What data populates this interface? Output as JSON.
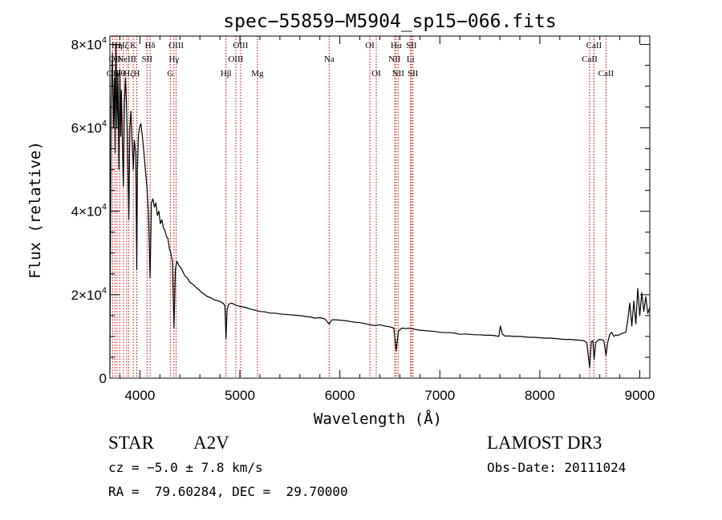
{
  "chart_data": {
    "type": "line",
    "title": "spec−55859−M5904_sp15−066.fits",
    "xlabel": "Wavelength (Å)",
    "ylabel": "Flux (relative)",
    "xlim": [
      3700,
      9100
    ],
    "ylim": [
      0,
      82000
    ],
    "x_ticks": [
      4000,
      5000,
      6000,
      7000,
      8000,
      9000
    ],
    "y_ticks": [
      {
        "value": 0,
        "label": "0",
        "exp": ""
      },
      {
        "value": 20000,
        "label": "2×10",
        "exp": "4"
      },
      {
        "value": 40000,
        "label": "4×10",
        "exp": "4"
      },
      {
        "value": 60000,
        "label": "6×10",
        "exp": "4"
      },
      {
        "value": 80000,
        "label": "8×10",
        "exp": "4"
      }
    ],
    "lines": [
      {
        "wave": 3727,
        "label": "OII",
        "row": 2
      },
      {
        "wave": 3750,
        "label": "OII",
        "row": 1
      },
      {
        "wave": 3771,
        "label": "Hη",
        "row": 0
      },
      {
        "wave": 3798,
        "label": "Hθ",
        "row": 2
      },
      {
        "wave": 3835,
        "label": "Hζ",
        "row": 0
      },
      {
        "wave": 3869,
        "label": "NeIII",
        "row": 1
      },
      {
        "wave": 3889,
        "label": "Hζ",
        "row": 2
      },
      {
        "wave": 3934,
        "label": "K",
        "row": 0
      },
      {
        "wave": 3969,
        "label": "H",
        "row": 2
      },
      {
        "wave": 4072,
        "label": "SII",
        "row": 1
      },
      {
        "wave": 4102,
        "label": "Hδ",
        "row": 0
      },
      {
        "wave": 4305,
        "label": "G",
        "row": 2
      },
      {
        "wave": 4341,
        "label": "Hγ",
        "row": 1
      },
      {
        "wave": 4363,
        "label": "OIII",
        "row": 0
      },
      {
        "wave": 4861,
        "label": "Hβ",
        "row": 2
      },
      {
        "wave": 4959,
        "label": "OIII",
        "row": 1
      },
      {
        "wave": 5007,
        "label": "OIII",
        "row": 0
      },
      {
        "wave": 5175,
        "label": "Mg",
        "row": 2
      },
      {
        "wave": 5893,
        "label": "Na",
        "row": 1
      },
      {
        "wave": 6300,
        "label": "OI",
        "row": 0
      },
      {
        "wave": 6364,
        "label": "OI",
        "row": 2
      },
      {
        "wave": 6548,
        "label": "NII",
        "row": 1
      },
      {
        "wave": 6563,
        "label": "Hα",
        "row": 0
      },
      {
        "wave": 6583,
        "label": "NII",
        "row": 2
      },
      {
        "wave": 6707,
        "label": "Li",
        "row": 1
      },
      {
        "wave": 6716,
        "label": "SII",
        "row": 0
      },
      {
        "wave": 6731,
        "label": "SII",
        "row": 2
      },
      {
        "wave": 8498,
        "label": "CaII",
        "row": 1
      },
      {
        "wave": 8542,
        "label": "CaII",
        "row": 0
      },
      {
        "wave": 8662,
        "label": "CaII",
        "row": 2
      }
    ],
    "series": [
      {
        "name": "flux",
        "points": [
          [
            3700,
            1000
          ],
          [
            3712,
            66000
          ],
          [
            3725,
            78000
          ],
          [
            3735,
            60000
          ],
          [
            3745,
            72000
          ],
          [
            3752,
            54000
          ],
          [
            3760,
            80000
          ],
          [
            3770,
            60000
          ],
          [
            3780,
            73000
          ],
          [
            3790,
            50000
          ],
          [
            3800,
            74000
          ],
          [
            3808,
            58000
          ],
          [
            3815,
            69000
          ],
          [
            3825,
            56000
          ],
          [
            3835,
            46000
          ],
          [
            3845,
            66000
          ],
          [
            3855,
            72000
          ],
          [
            3865,
            66000
          ],
          [
            3875,
            58000
          ],
          [
            3889,
            38000
          ],
          [
            3900,
            60000
          ],
          [
            3910,
            64000
          ],
          [
            3920,
            58000
          ],
          [
            3934,
            50000
          ],
          [
            3945,
            57000
          ],
          [
            3958,
            54000
          ],
          [
            3969,
            26000
          ],
          [
            3975,
            50000
          ],
          [
            3985,
            58000
          ],
          [
            3995,
            60000
          ],
          [
            4010,
            61000
          ],
          [
            4025,
            58000
          ],
          [
            4040,
            54000
          ],
          [
            4055,
            50000
          ],
          [
            4070,
            46000
          ],
          [
            4085,
            40000
          ],
          [
            4102,
            24000
          ],
          [
            4115,
            42000
          ],
          [
            4130,
            43000
          ],
          [
            4145,
            41000
          ],
          [
            4160,
            42000
          ],
          [
            4175,
            39000
          ],
          [
            4190,
            40000
          ],
          [
            4205,
            37000
          ],
          [
            4220,
            38000
          ],
          [
            4235,
            36000
          ],
          [
            4250,
            35500
          ],
          [
            4265,
            34000
          ],
          [
            4280,
            33500
          ],
          [
            4295,
            31000
          ],
          [
            4310,
            30000
          ],
          [
            4325,
            28000
          ],
          [
            4341,
            12000
          ],
          [
            4355,
            26000
          ],
          [
            4370,
            28000
          ],
          [
            4390,
            27000
          ],
          [
            4410,
            26500
          ],
          [
            4430,
            25500
          ],
          [
            4450,
            24500
          ],
          [
            4475,
            24000
          ],
          [
            4500,
            23000
          ],
          [
            4530,
            22500
          ],
          [
            4560,
            21800
          ],
          [
            4590,
            21200
          ],
          [
            4620,
            20500
          ],
          [
            4650,
            20000
          ],
          [
            4680,
            19500
          ],
          [
            4710,
            19300
          ],
          [
            4740,
            18800
          ],
          [
            4770,
            18600
          ],
          [
            4800,
            18400
          ],
          [
            4830,
            18000
          ],
          [
            4850,
            17500
          ],
          [
            4861,
            9500
          ],
          [
            4872,
            16500
          ],
          [
            4890,
            17800
          ],
          [
            4920,
            18000
          ],
          [
            4950,
            17600
          ],
          [
            5000,
            17200
          ],
          [
            5050,
            17000
          ],
          [
            5100,
            16600
          ],
          [
            5150,
            16300
          ],
          [
            5200,
            16000
          ],
          [
            5250,
            15900
          ],
          [
            5300,
            15600
          ],
          [
            5350,
            15600
          ],
          [
            5400,
            15400
          ],
          [
            5450,
            15300
          ],
          [
            5500,
            15200
          ],
          [
            5550,
            15100
          ],
          [
            5600,
            15000
          ],
          [
            5650,
            14800
          ],
          [
            5700,
            14700
          ],
          [
            5750,
            14400
          ],
          [
            5800,
            14500
          ],
          [
            5850,
            14200
          ],
          [
            5893,
            13000
          ],
          [
            5920,
            14000
          ],
          [
            5960,
            14000
          ],
          [
            6000,
            13900
          ],
          [
            6050,
            13800
          ],
          [
            6100,
            13600
          ],
          [
            6150,
            13400
          ],
          [
            6200,
            13300
          ],
          [
            6250,
            13100
          ],
          [
            6300,
            12800
          ],
          [
            6350,
            12600
          ],
          [
            6400,
            12800
          ],
          [
            6450,
            12500
          ],
          [
            6500,
            12300
          ],
          [
            6540,
            12000
          ],
          [
            6563,
            6500
          ],
          [
            6585,
            11300
          ],
          [
            6620,
            12000
          ],
          [
            6660,
            11900
          ],
          [
            6700,
            12000
          ],
          [
            6750,
            11700
          ],
          [
            6800,
            11500
          ],
          [
            6850,
            11400
          ],
          [
            6900,
            11300
          ],
          [
            6950,
            11200
          ],
          [
            7000,
            11000
          ],
          [
            7050,
            10900
          ],
          [
            7100,
            10900
          ],
          [
            7150,
            10800
          ],
          [
            7200,
            10500
          ],
          [
            7250,
            10600
          ],
          [
            7300,
            10500
          ],
          [
            7350,
            10400
          ],
          [
            7400,
            10400
          ],
          [
            7450,
            10300
          ],
          [
            7500,
            10300
          ],
          [
            7550,
            10200
          ],
          [
            7590,
            10000
          ],
          [
            7605,
            12500
          ],
          [
            7625,
            10600
          ],
          [
            7650,
            10100
          ],
          [
            7700,
            10100
          ],
          [
            7750,
            10000
          ],
          [
            7800,
            10000
          ],
          [
            7850,
            9900
          ],
          [
            7900,
            9800
          ],
          [
            7950,
            9800
          ],
          [
            8000,
            9700
          ],
          [
            8050,
            9600
          ],
          [
            8100,
            9600
          ],
          [
            8150,
            9500
          ],
          [
            8200,
            9400
          ],
          [
            8250,
            9300
          ],
          [
            8300,
            9300
          ],
          [
            8350,
            9200
          ],
          [
            8400,
            9100
          ],
          [
            8440,
            9000
          ],
          [
            8470,
            8500
          ],
          [
            8498,
            2500
          ],
          [
            8515,
            8800
          ],
          [
            8530,
            9000
          ],
          [
            8542,
            4500
          ],
          [
            8560,
            8500
          ],
          [
            8590,
            9300
          ],
          [
            8620,
            9200
          ],
          [
            8640,
            9000
          ],
          [
            8662,
            5500
          ],
          [
            8680,
            8700
          ],
          [
            8700,
            10500
          ],
          [
            8720,
            11000
          ],
          [
            8740,
            10000
          ],
          [
            8760,
            10400
          ],
          [
            8780,
            10200
          ],
          [
            8800,
            10500
          ],
          [
            8830,
            10800
          ],
          [
            8860,
            11000
          ],
          [
            8880,
            14000
          ],
          [
            8900,
            18000
          ],
          [
            8920,
            12500
          ],
          [
            8940,
            18500
          ],
          [
            8960,
            13000
          ],
          [
            8980,
            21500
          ],
          [
            9000,
            15000
          ],
          [
            9020,
            20500
          ],
          [
            9040,
            16000
          ],
          [
            9060,
            19500
          ],
          [
            9080,
            15500
          ],
          [
            9100,
            17000
          ]
        ]
      }
    ]
  },
  "info": {
    "object_type": "STAR",
    "subclass": "A2V",
    "survey": "LAMOST DR3",
    "redshift": "cz = −5.0 ± 7.8 km/s",
    "obs_date": "Obs-Date: 20111024",
    "coords": "RA =  79.60284, DEC =  29.70000"
  }
}
